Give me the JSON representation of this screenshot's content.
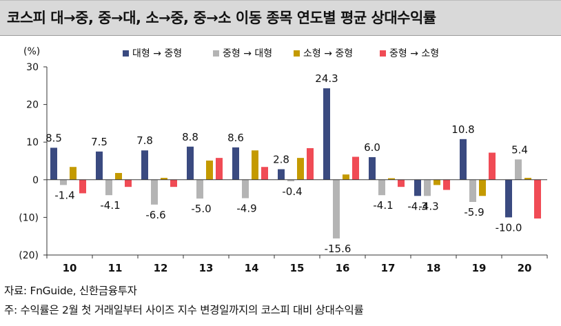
{
  "title": "코스피 대→중, 중→대, 소→중, 중→소 이동 종목 연도별 평균 상대수익률",
  "source": "자료: FnGuide, 신한금융투자",
  "note": "주: 수익률은 2월 첫 거래일부터 사이즈 지수 변경일까지의 코스피 대비 상대수익률",
  "chart_data": {
    "type": "bar",
    "unit_label": "(%)",
    "categories": [
      "10",
      "11",
      "12",
      "13",
      "14",
      "15",
      "16",
      "17",
      "18",
      "19",
      "20"
    ],
    "ylim": [
      -20,
      30
    ],
    "yticks": [
      30,
      20,
      10,
      0,
      -10,
      -20
    ],
    "ytick_labels": [
      "30",
      "20",
      "10",
      "0",
      "(10)",
      "(20)"
    ],
    "grid": false,
    "legend_position": "top",
    "series": [
      {
        "name": "대형 → 중형",
        "color": "#3a4a80",
        "values": [
          8.5,
          7.5,
          7.8,
          8.8,
          8.6,
          2.8,
          24.3,
          6.0,
          -4.3,
          10.8,
          -10.0
        ]
      },
      {
        "name": "중형 → 대형",
        "color": "#b4b4b4",
        "values": [
          -1.4,
          -4.1,
          -6.6,
          -5.0,
          -4.9,
          -0.4,
          -15.6,
          -4.1,
          -4.3,
          -5.9,
          5.4
        ]
      },
      {
        "name": "소형 → 중형",
        "color": "#c49a00",
        "values": [
          3.4,
          1.8,
          0.5,
          5.1,
          7.8,
          5.8,
          1.4,
          0.4,
          -1.4,
          -4.3,
          0.5
        ]
      },
      {
        "name": "중형 → 소형",
        "color": "#f04b55",
        "values": [
          -3.6,
          -1.9,
          -1.9,
          5.8,
          3.4,
          8.4,
          6.1,
          -1.9,
          -2.7,
          7.2,
          -10.3
        ]
      }
    ],
    "data_labels": [
      {
        "category": "10",
        "series": 0,
        "text": "8.5"
      },
      {
        "category": "11",
        "series": 0,
        "text": "7.5"
      },
      {
        "category": "12",
        "series": 0,
        "text": "7.8"
      },
      {
        "category": "13",
        "series": 0,
        "text": "8.8"
      },
      {
        "category": "14",
        "series": 0,
        "text": "8.6"
      },
      {
        "category": "15",
        "series": 0,
        "text": "2.8"
      },
      {
        "category": "16",
        "series": 0,
        "text": "24.3"
      },
      {
        "category": "17",
        "series": 0,
        "text": "6.0"
      },
      {
        "category": "18",
        "series": 0,
        "text": "-4.3"
      },
      {
        "category": "19",
        "series": 0,
        "text": "10.8"
      },
      {
        "category": "20",
        "series": 0,
        "text": "-10.0"
      },
      {
        "category": "10",
        "series": 1,
        "text": "-1.4"
      },
      {
        "category": "11",
        "series": 1,
        "text": "-4.1"
      },
      {
        "category": "12",
        "series": 1,
        "text": "-6.6"
      },
      {
        "category": "13",
        "series": 1,
        "text": "-5.0"
      },
      {
        "category": "14",
        "series": 1,
        "text": "-4.9"
      },
      {
        "category": "15",
        "series": 1,
        "text": "-0.4"
      },
      {
        "category": "16",
        "series": 1,
        "text": "-15.6"
      },
      {
        "category": "17",
        "series": 1,
        "text": "-4.1"
      },
      {
        "category": "18",
        "series": 1,
        "text": "-4.3"
      },
      {
        "category": "19",
        "series": 1,
        "text": "-5.9"
      },
      {
        "category": "20",
        "series": 1,
        "text": "5.4"
      }
    ]
  }
}
